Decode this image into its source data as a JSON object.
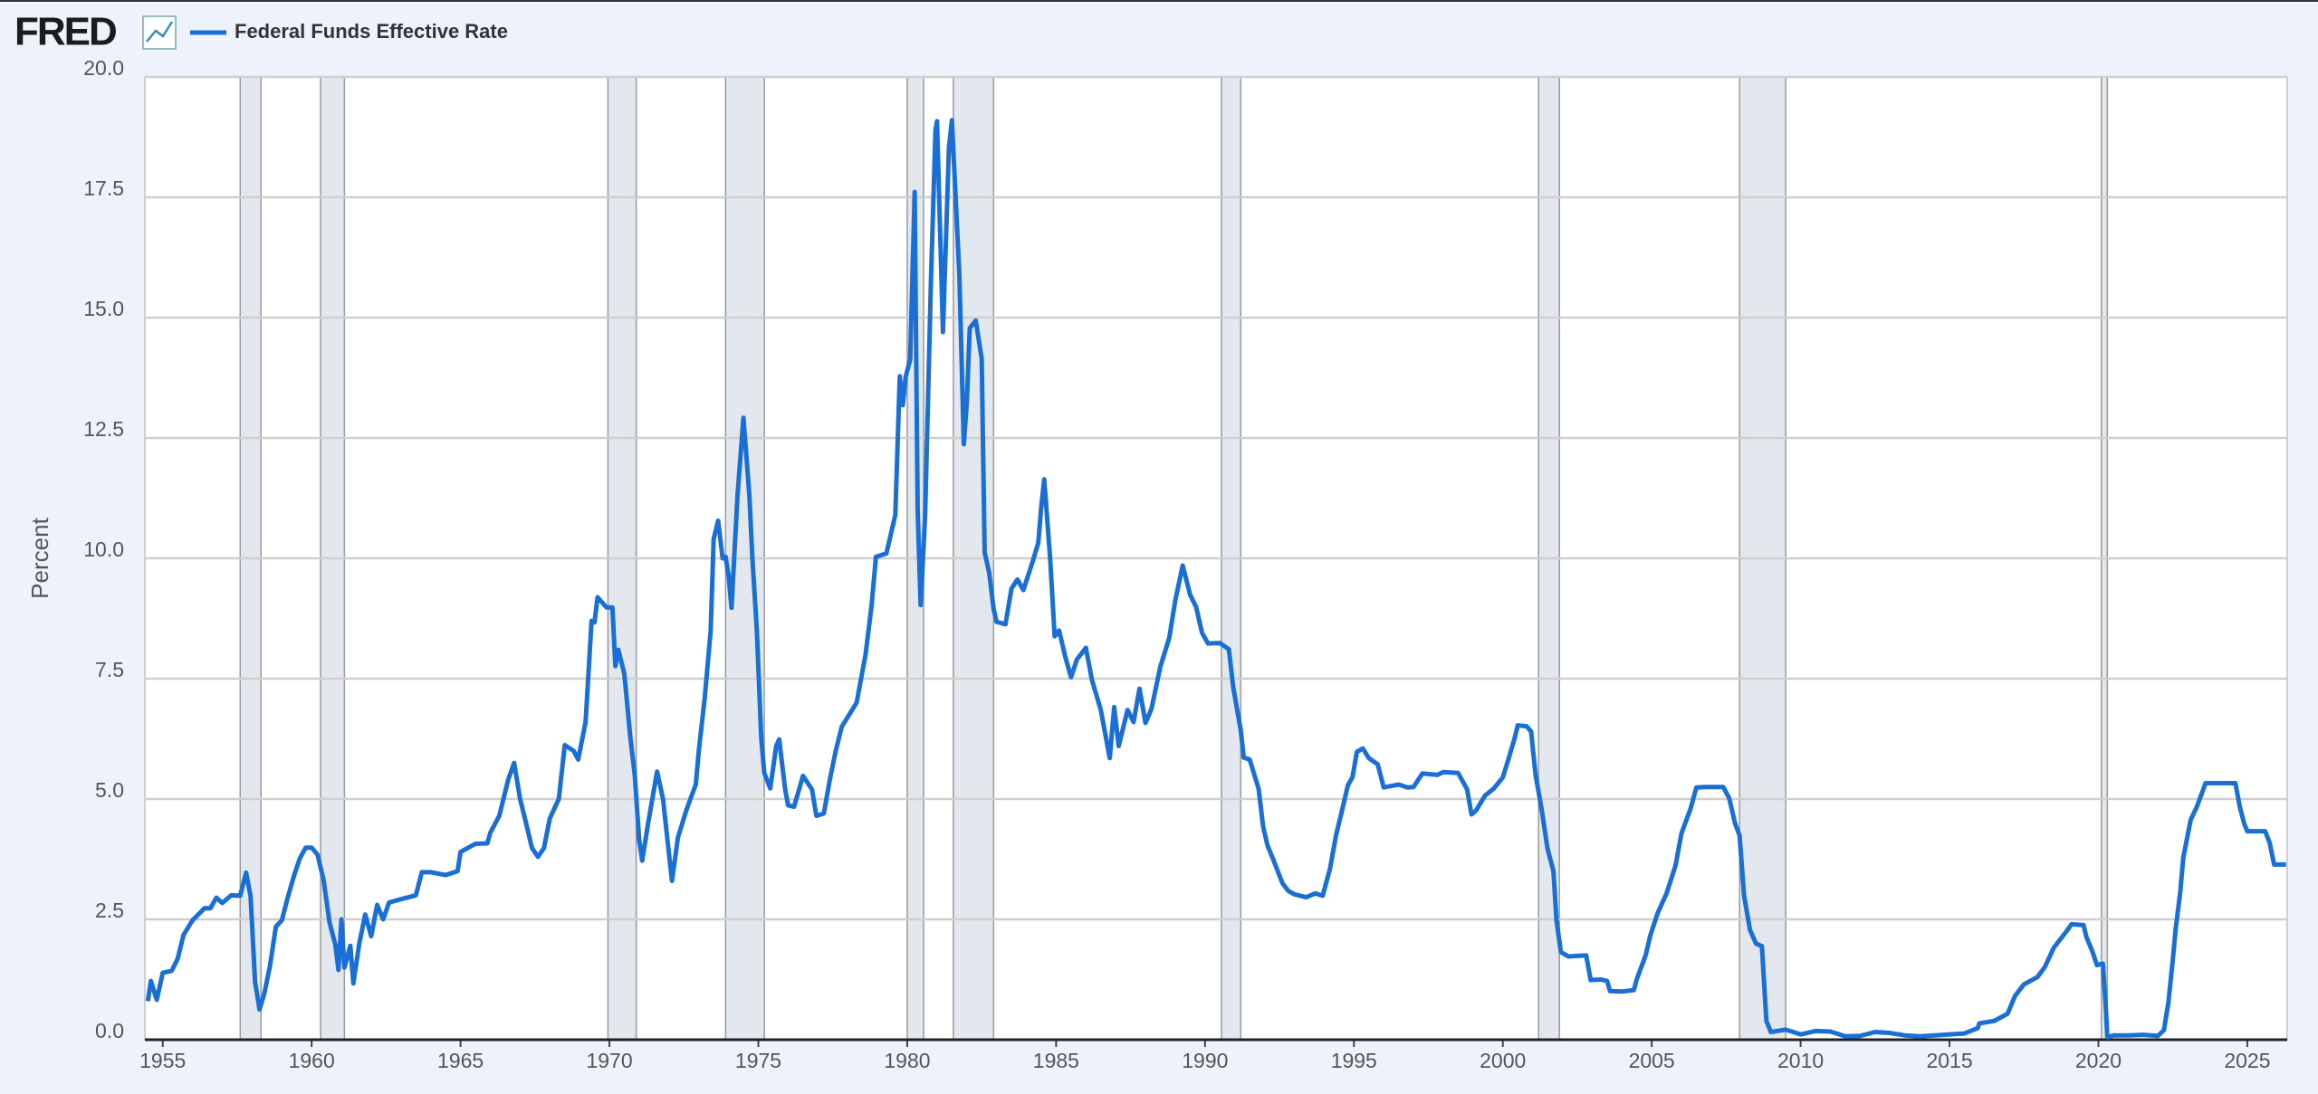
{
  "logo": "FRED",
  "chart_data": {
    "type": "line",
    "y_label": "Percent",
    "xlim": [
      1954.4,
      2026.34
    ],
    "ylim": [
      0,
      20
    ],
    "xticks": [
      1955,
      1960,
      1965,
      1970,
      1975,
      1980,
      1985,
      1990,
      1995,
      2000,
      2005,
      2010,
      2015,
      2020,
      2025
    ],
    "yticks": [
      {
        "value": 0,
        "label": "0.0"
      },
      {
        "value": 2.5,
        "label": "2.5"
      },
      {
        "value": 5,
        "label": "5.0"
      },
      {
        "value": 7.5,
        "label": "7.5"
      },
      {
        "value": 10,
        "label": "10.0"
      },
      {
        "value": 12.5,
        "label": "12.5"
      },
      {
        "value": 15,
        "label": "15.0"
      },
      {
        "value": 17.5,
        "label": "17.5"
      },
      {
        "value": 20,
        "label": "20.0"
      }
    ],
    "grid": true,
    "recessions": [
      [
        1957.6,
        1958.3
      ],
      [
        1960.3,
        1961.1
      ],
      [
        1969.95,
        1970.9
      ],
      [
        1973.9,
        1975.2
      ],
      [
        1980.0,
        1980.55
      ],
      [
        1981.55,
        1982.9
      ],
      [
        1990.55,
        1991.2
      ],
      [
        2001.2,
        2001.9
      ],
      [
        2007.95,
        2009.5
      ],
      [
        2020.1,
        2020.3
      ]
    ],
    "x": [
      1954.5,
      1954.6,
      1954.8,
      1955.0,
      1955.3,
      1955.5,
      1955.7,
      1956.0,
      1956.4,
      1956.6,
      1956.8,
      1957.0,
      1957.3,
      1957.6,
      1957.8,
      1957.95,
      1958.1,
      1958.25,
      1958.4,
      1958.6,
      1958.8,
      1959.0,
      1959.2,
      1959.4,
      1959.6,
      1959.8,
      1960.0,
      1960.2,
      1960.4,
      1960.6,
      1960.8,
      1960.9,
      1961.0,
      1961.1,
      1961.3,
      1961.4,
      1961.6,
      1961.8,
      1962.0,
      1962.2,
      1962.4,
      1962.6,
      1963.0,
      1963.5,
      1963.7,
      1964.0,
      1964.5,
      1964.9,
      1965.0,
      1965.5,
      1965.9,
      1966.0,
      1966.3,
      1966.6,
      1966.8,
      1967.0,
      1967.2,
      1967.4,
      1967.6,
      1967.8,
      1968.0,
      1968.3,
      1968.5,
      1968.8,
      1968.95,
      1969.2,
      1969.4,
      1969.5,
      1969.6,
      1969.9,
      1970.1,
      1970.2,
      1970.3,
      1970.5,
      1970.7,
      1970.85,
      1971.0,
      1971.1,
      1971.3,
      1971.6,
      1971.8,
      1971.95,
      1972.1,
      1972.3,
      1972.6,
      1972.9,
      1973.0,
      1973.2,
      1973.4,
      1973.5,
      1973.65,
      1973.8,
      1973.9,
      1974.0,
      1974.1,
      1974.3,
      1974.5,
      1974.7,
      1974.8,
      1974.95,
      1975.1,
      1975.2,
      1975.4,
      1975.6,
      1975.7,
      1975.9,
      1976.0,
      1976.2,
      1976.5,
      1976.8,
      1976.95,
      1977.2,
      1977.4,
      1977.6,
      1977.8,
      1978.0,
      1978.3,
      1978.6,
      1978.8,
      1978.95,
      1979.3,
      1979.6,
      1979.75,
      1979.85,
      1979.95,
      1980.1,
      1980.25,
      1980.35,
      1980.45,
      1980.6,
      1980.8,
      1980.95,
      1981.0,
      1981.2,
      1981.4,
      1981.5,
      1981.6,
      1981.75,
      1981.9,
      1982.0,
      1982.1,
      1982.3,
      1982.5,
      1982.6,
      1982.75,
      1982.9,
      1983.0,
      1983.3,
      1983.5,
      1983.7,
      1983.9,
      1984.2,
      1984.4,
      1984.5,
      1984.6,
      1984.8,
      1984.95,
      1985.1,
      1985.3,
      1985.5,
      1985.7,
      1986.0,
      1986.2,
      1986.5,
      1986.8,
      1986.95,
      1987.1,
      1987.4,
      1987.6,
      1987.8,
      1988.0,
      1988.2,
      1988.5,
      1988.8,
      1989.0,
      1989.25,
      1989.5,
      1989.7,
      1989.9,
      1990.1,
      1990.5,
      1990.8,
      1990.95,
      1991.2,
      1991.3,
      1991.5,
      1991.8,
      1991.95,
      1992.1,
      1992.3,
      1992.6,
      1992.8,
      1993.0,
      1993.4,
      1993.7,
      1993.95,
      1994.2,
      1994.4,
      1994.6,
      1994.8,
      1994.95,
      1995.1,
      1995.3,
      1995.5,
      1995.8,
      1996.0,
      1996.5,
      1996.8,
      1997.0,
      1997.3,
      1997.8,
      1998.0,
      1998.5,
      1998.8,
      1998.95,
      1999.1,
      1999.4,
      1999.7,
      2000.0,
      2000.2,
      2000.4,
      2000.5,
      2000.8,
      2000.95,
      2001.1,
      2001.3,
      2001.5,
      2001.7,
      2001.8,
      2001.95,
      2002.2,
      2002.5,
      2002.8,
      2002.95,
      2003.3,
      2003.5,
      2003.6,
      2004.0,
      2004.4,
      2004.5,
      2004.8,
      2004.95,
      2005.2,
      2005.5,
      2005.8,
      2006.0,
      2006.3,
      2006.5,
      2006.8,
      2007.4,
      2007.6,
      2007.8,
      2007.95,
      2008.1,
      2008.3,
      2008.5,
      2008.7,
      2008.85,
      2009.0,
      2009.5,
      2010.0,
      2010.5,
      2011.0,
      2011.5,
      2012.0,
      2012.5,
      2013.0,
      2013.5,
      2014.0,
      2014.5,
      2015.0,
      2015.5,
      2015.95,
      2016.0,
      2016.5,
      2016.95,
      2017.2,
      2017.5,
      2017.95,
      2018.2,
      2018.5,
      2018.95,
      2019.1,
      2019.5,
      2019.6,
      2019.8,
      2019.95,
      2020.15,
      2020.25,
      2020.3,
      2020.5,
      2021.0,
      2021.5,
      2022.0,
      2022.2,
      2022.35,
      2022.5,
      2022.6,
      2022.75,
      2022.85,
      2022.95,
      2023.1,
      2023.3,
      2023.45,
      2023.6,
      2024.6,
      2024.75,
      2024.9,
      2025.0,
      2025.6,
      2025.75,
      2025.9,
      2026.3
    ],
    "series": [
      {
        "name": "Federal Funds Effective Rate",
        "color": "#1a6fd6",
        "values": [
          0.8,
          1.22,
          0.83,
          1.39,
          1.43,
          1.68,
          2.18,
          2.48,
          2.73,
          2.73,
          2.95,
          2.84,
          3.0,
          2.99,
          3.47,
          2.98,
          1.2,
          0.63,
          0.93,
          1.53,
          2.35,
          2.48,
          2.96,
          3.39,
          3.76,
          3.99,
          3.99,
          3.84,
          3.32,
          2.44,
          1.96,
          1.45,
          2.5,
          1.5,
          1.95,
          1.17,
          2.0,
          2.6,
          2.15,
          2.8,
          2.5,
          2.85,
          2.92,
          3.0,
          3.48,
          3.48,
          3.42,
          3.5,
          3.9,
          4.07,
          4.08,
          4.3,
          4.65,
          5.4,
          5.75,
          5.0,
          4.5,
          3.98,
          3.8,
          3.98,
          4.6,
          5.0,
          6.12,
          6.0,
          5.82,
          6.6,
          8.7,
          8.67,
          9.19,
          8.98,
          8.98,
          7.76,
          8.1,
          7.6,
          6.29,
          5.5,
          4.14,
          3.72,
          4.5,
          5.57,
          5.0,
          4.14,
          3.3,
          4.2,
          4.8,
          5.3,
          6.0,
          7.1,
          8.5,
          10.4,
          10.78,
          10.0,
          10.03,
          9.65,
          8.97,
          11.3,
          12.92,
          11.3,
          10.0,
          8.5,
          6.25,
          5.54,
          5.22,
          6.1,
          6.24,
          5.2,
          4.87,
          4.84,
          5.48,
          5.2,
          4.65,
          4.7,
          5.4,
          6.0,
          6.5,
          6.7,
          7.0,
          8.0,
          9.0,
          10.03,
          10.1,
          10.9,
          13.78,
          13.18,
          13.78,
          14.13,
          17.61,
          11.0,
          9.03,
          10.87,
          15.85,
          18.9,
          19.08,
          14.7,
          18.52,
          19.1,
          17.82,
          15.9,
          12.37,
          13.22,
          14.78,
          14.94,
          14.15,
          10.12,
          9.71,
          8.95,
          8.68,
          8.63,
          9.37,
          9.56,
          9.34,
          9.91,
          10.32,
          11.06,
          11.64,
          9.99,
          8.38,
          8.5,
          7.97,
          7.53,
          7.9,
          8.14,
          7.48,
          6.85,
          5.85,
          6.91,
          6.1,
          6.85,
          6.6,
          7.29,
          6.58,
          6.87,
          7.75,
          8.35,
          9.12,
          9.85,
          9.24,
          8.99,
          8.45,
          8.23,
          8.24,
          8.11,
          7.31,
          6.43,
          5.86,
          5.82,
          5.21,
          4.43,
          4.03,
          3.73,
          3.25,
          3.09,
          3.02,
          2.96,
          3.04,
          2.99,
          3.56,
          4.25,
          4.76,
          5.29,
          5.45,
          5.98,
          6.05,
          5.85,
          5.72,
          5.24,
          5.3,
          5.24,
          5.25,
          5.53,
          5.5,
          5.56,
          5.54,
          5.2,
          4.68,
          4.76,
          5.07,
          5.22,
          5.45,
          5.85,
          6.27,
          6.53,
          6.51,
          6.4,
          5.5,
          4.8,
          3.97,
          3.5,
          2.49,
          1.82,
          1.73,
          1.74,
          1.75,
          1.24,
          1.25,
          1.22,
          1.01,
          1.0,
          1.03,
          1.26,
          1.76,
          2.16,
          2.63,
          3.04,
          3.62,
          4.29,
          4.79,
          5.24,
          5.25,
          5.25,
          5.02,
          4.49,
          4.24,
          3.0,
          2.28,
          2.0,
          1.94,
          0.39,
          0.16,
          0.21,
          0.11,
          0.18,
          0.17,
          0.07,
          0.08,
          0.16,
          0.14,
          0.09,
          0.07,
          0.09,
          0.11,
          0.13,
          0.24,
          0.34,
          0.39,
          0.54,
          0.91,
          1.15,
          1.3,
          1.51,
          1.91,
          2.27,
          2.4,
          2.38,
          2.13,
          1.83,
          1.55,
          1.58,
          0.65,
          0.05,
          0.09,
          0.09,
          0.1,
          0.08,
          0.2,
          0.77,
          1.68,
          2.33,
          3.08,
          3.78,
          4.1,
          4.57,
          4.83,
          5.08,
          5.33,
          5.33,
          4.83,
          4.48,
          4.33,
          4.33,
          4.09,
          3.64,
          3.64
        ]
      }
    ]
  }
}
